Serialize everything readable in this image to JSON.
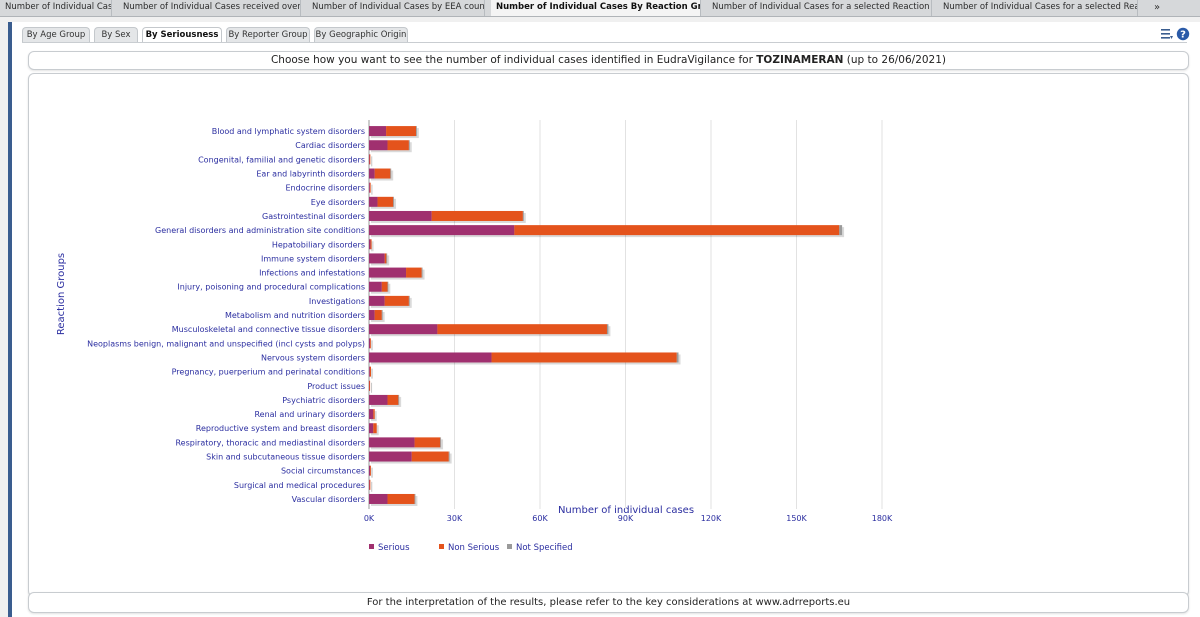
{
  "top_tabs": [
    {
      "label": "Number of Individual Cases"
    },
    {
      "label": "Number of Individual Cases received over time"
    },
    {
      "label": "Number of Individual Cases by EEA countries"
    },
    {
      "label": "Number of Individual Cases By Reaction Groups"
    },
    {
      "label": "Number of Individual Cases for a selected Reaction Group"
    },
    {
      "label": "Number of Individual Cases for a selected Reaction"
    }
  ],
  "top_tabs_more": "»",
  "sub_tabs": [
    {
      "label": "By Age Group"
    },
    {
      "label": "By Sex"
    },
    {
      "label": "By Seriousness"
    },
    {
      "label": "By Reporter Group"
    },
    {
      "label": "By Geographic Origin"
    }
  ],
  "header": {
    "prefix": "Choose how you want to see the number of individual cases identified in EudraVigilance for ",
    "product": "TOZINAMERAN",
    "suffix": " (up to 26/06/2021)"
  },
  "footer": {
    "text": "For the interpretation of the results, please refer to the key considerations at www.adrreports.eu"
  },
  "icons": {
    "list_icon": "list-menu-icon",
    "help_icon": "help-icon",
    "help_glyph": "?"
  },
  "colors": {
    "serious": "#a0306f",
    "non_serious": "#e4531c",
    "not_specified": "#9a9a9a",
    "axis_text": "#2b2ea0",
    "accent": "#3a5d8f"
  },
  "chart_data": {
    "type": "bar",
    "orientation": "horizontal",
    "stacked": true,
    "title": "",
    "xlabel": "Number of individual cases",
    "ylabel": "Reaction Groups",
    "xlim": [
      0,
      180000
    ],
    "x_ticks": [
      0,
      30000,
      60000,
      90000,
      120000,
      150000,
      180000
    ],
    "x_tick_labels": [
      "0K",
      "30K",
      "60K",
      "90K",
      "120K",
      "150K",
      "180K"
    ],
    "grid": true,
    "legend_position": "bottom-left",
    "categories": [
      "Blood and lymphatic system disorders",
      "Cardiac disorders",
      "Congenital, familial and genetic disorders",
      "Ear and labyrinth disorders",
      "Endocrine disorders",
      "Eye disorders",
      "Gastrointestinal disorders",
      "General disorders and administration site conditions",
      "Hepatobiliary disorders",
      "Immune system disorders",
      "Infections and infestations",
      "Injury, poisoning and procedural complications",
      "Investigations",
      "Metabolism and nutrition disorders",
      "Musculoskeletal and connective tissue disorders",
      "Neoplasms benign, malignant and unspecified (incl cysts and polyps)",
      "Nervous system disorders",
      "Pregnancy, puerperium and perinatal conditions",
      "Product issues",
      "Psychiatric disorders",
      "Renal and urinary disorders",
      "Reproductive system and breast disorders",
      "Respiratory, thoracic and mediastinal disorders",
      "Skin and subcutaneous tissue disorders",
      "Social circumstances",
      "Surgical and medical procedures",
      "Vascular disorders"
    ],
    "series": [
      {
        "name": "Serious",
        "values": [
          6000,
          6500,
          200,
          2000,
          300,
          3000,
          22000,
          51000,
          500,
          5500,
          13000,
          4500,
          5500,
          2000,
          24000,
          400,
          43000,
          300,
          100,
          6500,
          1500,
          1500,
          16000,
          15000,
          400,
          200,
          6500
        ]
      },
      {
        "name": "Non Serious",
        "values": [
          10500,
          7500,
          50,
          5500,
          150,
          5500,
          32000,
          114000,
          400,
          600,
          5500,
          2000,
          8500,
          2500,
          59500,
          150,
          65000,
          400,
          50,
          3800,
          500,
          1200,
          9000,
          13000,
          300,
          100,
          9500
        ]
      },
      {
        "name": "Not Specified",
        "values": [
          200,
          200,
          0,
          100,
          0,
          100,
          300,
          1000,
          0,
          100,
          200,
          100,
          200,
          100,
          500,
          0,
          600,
          0,
          0,
          100,
          0,
          0,
          200,
          200,
          0,
          0,
          200
        ]
      }
    ]
  }
}
